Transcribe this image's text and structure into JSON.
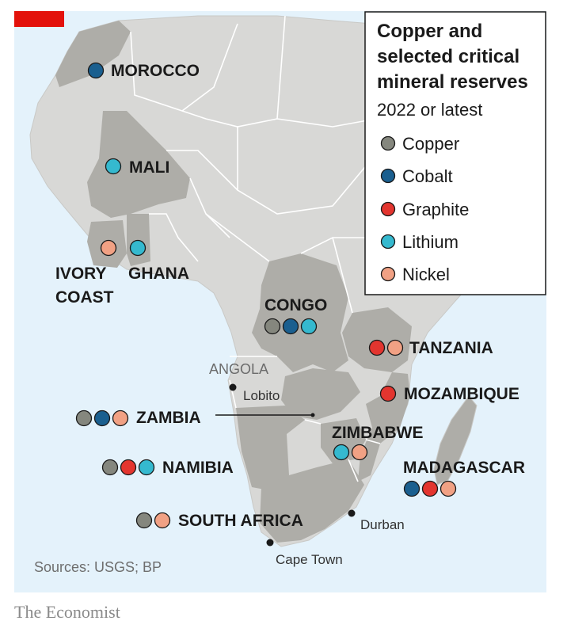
{
  "legend": {
    "title_lines": [
      "Copper and",
      "selected critical",
      "mineral reserves"
    ],
    "subtitle": "2022 or latest",
    "items": [
      {
        "key": "copper",
        "label": "Copper"
      },
      {
        "key": "cobalt",
        "label": "Cobalt"
      },
      {
        "key": "graphite",
        "label": "Graphite"
      },
      {
        "key": "lithium",
        "label": "Lithium"
      },
      {
        "key": "nickel",
        "label": "Nickel"
      }
    ]
  },
  "colors": {
    "copper": "#85877e",
    "cobalt": "#1a5f8f",
    "graphite": "#e3352f",
    "lithium": "#35b9cf",
    "nickel": "#f1a184",
    "sea": "#e4f2fb",
    "land": "#d8d8d6",
    "highlight": "#aeada8",
    "brand_tag": "#e3120b"
  },
  "countries": [
    {
      "id": "morocco",
      "label": [
        "MOROCCO"
      ],
      "minerals": [
        "cobalt"
      ]
    },
    {
      "id": "mali",
      "label": [
        "MALI"
      ],
      "minerals": [
        "lithium"
      ]
    },
    {
      "id": "ivory-coast",
      "label": [
        "IVORY",
        "COAST"
      ],
      "minerals": [
        "nickel"
      ]
    },
    {
      "id": "ghana",
      "label": [
        "GHANA"
      ],
      "minerals": [
        "lithium"
      ]
    },
    {
      "id": "congo",
      "label": [
        "CONGO"
      ],
      "minerals": [
        "copper",
        "cobalt",
        "lithium"
      ]
    },
    {
      "id": "tanzania",
      "label": [
        "TANZANIA"
      ],
      "minerals": [
        "graphite",
        "nickel"
      ]
    },
    {
      "id": "mozambique",
      "label": [
        "MOZAMBIQUE"
      ],
      "minerals": [
        "graphite"
      ]
    },
    {
      "id": "zambia",
      "label": [
        "ZAMBIA"
      ],
      "minerals": [
        "copper",
        "cobalt",
        "nickel"
      ]
    },
    {
      "id": "zimbabwe",
      "label": [
        "ZIMBABWE"
      ],
      "minerals": [
        "lithium",
        "nickel"
      ]
    },
    {
      "id": "namibia",
      "label": [
        "NAMIBIA"
      ],
      "minerals": [
        "copper",
        "graphite",
        "lithium"
      ]
    },
    {
      "id": "madagascar",
      "label": [
        "MADAGASCAR"
      ],
      "minerals": [
        "cobalt",
        "graphite",
        "nickel"
      ]
    },
    {
      "id": "south-africa",
      "label": [
        "SOUTH AFRICA"
      ],
      "minerals": [
        "copper",
        "nickel"
      ]
    }
  ],
  "cities": [
    {
      "id": "lobito",
      "label": "Lobito"
    },
    {
      "id": "durban",
      "label": "Durban"
    },
    {
      "id": "cape-town",
      "label": "Cape Town"
    }
  ],
  "angola_label": "ANGOLA",
  "source": "Sources: USGS; BP",
  "brand": "The Economist"
}
